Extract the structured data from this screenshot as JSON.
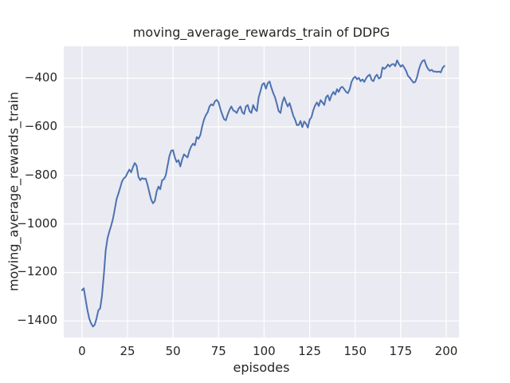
{
  "chart": {
    "title": "moving_average_rewards_train of DDPG",
    "xlabel": "episodes",
    "ylabel": "moving_average_rewards_train"
  },
  "colors": {
    "figure_background": "#ffffff",
    "axes_background": "#eaeaf2",
    "grid": "#ffffff",
    "line": "#4c72b0",
    "text": "#262626"
  },
  "chart_data": {
    "type": "line",
    "title": "moving_average_rewards_train of DDPG",
    "xlabel": "episodes",
    "ylabel": "moving_average_rewards_train",
    "xlim": [
      -10,
      207
    ],
    "ylim": [
      -1468,
      -268
    ],
    "xticks": [
      0,
      25,
      50,
      75,
      100,
      125,
      150,
      175,
      200
    ],
    "xtick_labels": [
      "0",
      "25",
      "50",
      "75",
      "100",
      "125",
      "150",
      "175",
      "200"
    ],
    "yticks": [
      -400,
      -600,
      -800,
      -1000,
      -1200,
      -1400
    ],
    "ytick_labels": [
      "−400",
      "−600",
      "−800",
      "−1000",
      "−1200",
      "−1400"
    ],
    "grid": true,
    "legend": false,
    "x": {
      "start": 0,
      "step": 1,
      "count": 200
    },
    "series": [
      {
        "name": "moving_average_rewards_train",
        "color": "#4c72b0",
        "values": [
          -1273,
          -1265,
          -1310,
          -1355,
          -1390,
          -1410,
          -1423,
          -1415,
          -1390,
          -1356,
          -1348,
          -1295,
          -1210,
          -1110,
          -1060,
          -1032,
          -1008,
          -980,
          -940,
          -898,
          -875,
          -850,
          -825,
          -812,
          -806,
          -790,
          -776,
          -787,
          -765,
          -749,
          -760,
          -806,
          -820,
          -811,
          -815,
          -813,
          -838,
          -870,
          -900,
          -915,
          -905,
          -866,
          -846,
          -857,
          -820,
          -816,
          -800,
          -760,
          -720,
          -698,
          -696,
          -726,
          -745,
          -737,
          -763,
          -734,
          -713,
          -720,
          -726,
          -698,
          -680,
          -669,
          -676,
          -642,
          -649,
          -634,
          -598,
          -570,
          -552,
          -540,
          -516,
          -507,
          -512,
          -495,
          -489,
          -499,
          -527,
          -549,
          -568,
          -573,
          -549,
          -530,
          -516,
          -532,
          -536,
          -543,
          -525,
          -516,
          -540,
          -547,
          -516,
          -510,
          -535,
          -543,
          -510,
          -527,
          -535,
          -478,
          -452,
          -425,
          -420,
          -443,
          -420,
          -413,
          -439,
          -461,
          -478,
          -505,
          -535,
          -543,
          -500,
          -478,
          -499,
          -516,
          -502,
          -527,
          -554,
          -570,
          -593,
          -592,
          -576,
          -601,
          -578,
          -587,
          -603,
          -570,
          -560,
          -532,
          -512,
          -499,
          -514,
          -490,
          -499,
          -510,
          -478,
          -470,
          -492,
          -470,
          -456,
          -467,
          -445,
          -456,
          -439,
          -435,
          -445,
          -456,
          -461,
          -445,
          -415,
          -400,
          -393,
          -404,
          -398,
          -412,
          -404,
          -415,
          -400,
          -390,
          -385,
          -406,
          -412,
          -393,
          -385,
          -401,
          -396,
          -355,
          -361,
          -354,
          -343,
          -352,
          -343,
          -341,
          -350,
          -326,
          -341,
          -352,
          -345,
          -356,
          -370,
          -390,
          -398,
          -408,
          -418,
          -415,
          -395,
          -363,
          -341,
          -328,
          -325,
          -347,
          -361,
          -369,
          -365,
          -372,
          -372,
          -374,
          -372,
          -376,
          -357,
          -349
        ]
      }
    ]
  }
}
